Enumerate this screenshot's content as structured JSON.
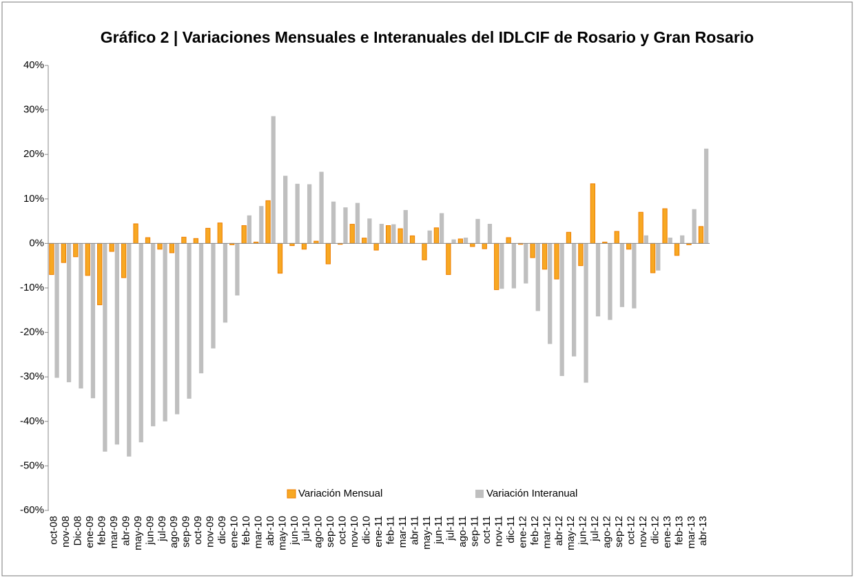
{
  "chart_data": {
    "type": "bar",
    "title": "Gráfico 2 | Variaciones Mensuales e Interanuales del IDLCIF de Rosario y Gran Rosario",
    "categories": [
      "oct-08",
      "nov-08",
      "Dic-08",
      "ene-09",
      "feb-09",
      "mar-09",
      "abr-09",
      "may-09",
      "jun-09",
      "jul-09",
      "ago-09",
      "sep-09",
      "oct-09",
      "nov-09",
      "dic-09",
      "ene-10",
      "feb-10",
      "mar-10",
      "abr-10",
      "may-10",
      "jun-10",
      "jul-10",
      "ago-10",
      "sep-10",
      "oct-10",
      "nov-10",
      "dic-10",
      "ene-11",
      "feb-11",
      "mar-11",
      "abr-11",
      "may-11",
      "jun-11",
      "jul-11",
      "ago-11",
      "sep-11",
      "oct-11",
      "nov-11",
      "dic-11",
      "ene-12",
      "feb-12",
      "mar-12",
      "abr-12",
      "may-12",
      "jun-12",
      "jul-12",
      "ago-12",
      "sep-12",
      "oct-12",
      "nov-12",
      "dic-12",
      "ene-13",
      "feb-13",
      "mar-13",
      "abr-13"
    ],
    "series": [
      {
        "name": "Variación Mensual",
        "color": "#f7a823",
        "values": [
          -7,
          -4.3,
          -3,
          -7.2,
          -13.8,
          -1.8,
          -7.7,
          4.4,
          1.3,
          -1.3,
          -2.1,
          1.4,
          1.1,
          3.4,
          4.6,
          -0.3,
          4,
          0.3,
          9.6,
          -6.7,
          -0.5,
          -1.3,
          0.5,
          -4.6,
          -0.2,
          4.3,
          1.2,
          -1.5,
          4,
          3.3,
          1.7,
          -3.7,
          3.5,
          -7,
          1,
          -0.7,
          -1.2,
          -10.4,
          1.3,
          -0.2,
          -3.2,
          -5.8,
          -8,
          2.5,
          -5,
          13.4,
          0.3,
          2.7,
          -1.3,
          7,
          -6.6,
          7.8,
          -2.7,
          -0.3,
          3.8
        ]
      },
      {
        "name": "Variación Interanual",
        "color": "#bfbfbf",
        "values": [
          -30.2,
          -31.2,
          -32.6,
          -34.8,
          -46.8,
          -45.2,
          -47.9,
          -44.7,
          -41.1,
          -40,
          -38.4,
          -34.9,
          -29.2,
          -23.6,
          -17.8,
          -11.7,
          6.3,
          8.4,
          28.6,
          15.2,
          13.4,
          13.3,
          16.1,
          9.4,
          8.1,
          9.1,
          5.6,
          4.4,
          4.3,
          7.5,
          0,
          2.9,
          6.8,
          0.9,
          1.3,
          5.5,
          4.4,
          -10.2,
          -10.1,
          -9,
          -15.2,
          -22.6,
          -29.8,
          -25.4,
          -31.3,
          -16.4,
          -17.2,
          -14.3,
          -14.6,
          1.8,
          -6.1,
          1.3,
          1.8,
          7.7,
          21.3
        ]
      }
    ],
    "ylim": [
      -60,
      40
    ],
    "yticks": [
      {
        "value": -60,
        "label": "-60%"
      },
      {
        "value": -50,
        "label": "-50%"
      },
      {
        "value": -40,
        "label": "-40%"
      },
      {
        "value": -30,
        "label": "-30%"
      },
      {
        "value": -20,
        "label": "-20%"
      },
      {
        "value": -10,
        "label": "-10%"
      },
      {
        "value": 0,
        "label": "0%"
      },
      {
        "value": 10,
        "label": "10%"
      },
      {
        "value": 20,
        "label": "20%"
      },
      {
        "value": 30,
        "label": "30%"
      },
      {
        "value": 40,
        "label": "40%"
      }
    ],
    "grid": false,
    "legend": "bottom"
  }
}
